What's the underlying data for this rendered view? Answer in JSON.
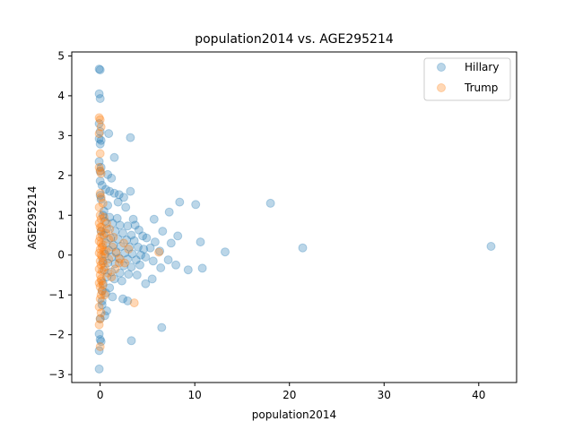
{
  "chart_data": {
    "type": "scatter",
    "title": "population2014 vs. AGE295214",
    "xlabel": "population2014",
    "ylabel": "AGE295214",
    "xlim": [
      -3.0,
      44.0
    ],
    "ylim": [
      -3.2,
      5.1
    ],
    "xticks": [
      0,
      10,
      20,
      30,
      40
    ],
    "yticks": [
      -3,
      -2,
      -1,
      0,
      1,
      2,
      3,
      4,
      5
    ],
    "grid": false,
    "legend_position": "top-right",
    "series": [
      {
        "name": "Hillary",
        "color": "#1f77b4",
        "alpha": 0.3,
        "points": [
          [
            -0.1,
            4.67
          ],
          [
            0.0,
            4.65
          ],
          [
            -0.1,
            4.05
          ],
          [
            0.0,
            3.93
          ],
          [
            -0.1,
            3.3
          ],
          [
            0.0,
            3.1
          ],
          [
            -0.1,
            2.92
          ],
          [
            0.1,
            2.88
          ],
          [
            0.0,
            2.79
          ],
          [
            0.9,
            3.05
          ],
          [
            3.2,
            2.95
          ],
          [
            -0.1,
            2.35
          ],
          [
            0.1,
            2.2
          ],
          [
            0.0,
            2.1
          ],
          [
            1.5,
            2.45
          ],
          [
            0.8,
            2.02
          ],
          [
            1.2,
            1.93
          ],
          [
            0.0,
            1.86
          ],
          [
            0.2,
            1.75
          ],
          [
            0.6,
            1.65
          ],
          [
            1.0,
            1.6
          ],
          [
            1.5,
            1.55
          ],
          [
            2.0,
            1.52
          ],
          [
            2.5,
            1.45
          ],
          [
            3.2,
            1.6
          ],
          [
            0.1,
            1.4
          ],
          [
            1.9,
            1.33
          ],
          [
            0.8,
            1.25
          ],
          [
            2.7,
            1.2
          ],
          [
            8.4,
            1.33
          ],
          [
            10.1,
            1.27
          ],
          [
            18.0,
            1.3
          ],
          [
            7.3,
            1.08
          ],
          [
            0.3,
            1.0
          ],
          [
            1.0,
            0.95
          ],
          [
            1.8,
            0.92
          ],
          [
            3.5,
            0.9
          ],
          [
            5.7,
            0.9
          ],
          [
            0.5,
            0.85
          ],
          [
            1.3,
            0.8
          ],
          [
            2.1,
            0.75
          ],
          [
            2.9,
            0.73
          ],
          [
            3.7,
            0.75
          ],
          [
            4.1,
            0.63
          ],
          [
            0.7,
            0.66
          ],
          [
            1.6,
            0.6
          ],
          [
            2.4,
            0.55
          ],
          [
            3.3,
            0.5
          ],
          [
            4.5,
            0.48
          ],
          [
            6.6,
            0.6
          ],
          [
            8.2,
            0.48
          ],
          [
            0.4,
            0.5
          ],
          [
            1.1,
            0.43
          ],
          [
            1.9,
            0.4
          ],
          [
            2.8,
            0.38
          ],
          [
            3.6,
            0.36
          ],
          [
            4.9,
            0.43
          ],
          [
            5.8,
            0.33
          ],
          [
            7.5,
            0.3
          ],
          [
            10.6,
            0.33
          ],
          [
            0.6,
            0.3
          ],
          [
            1.4,
            0.25
          ],
          [
            2.2,
            0.22
          ],
          [
            3.1,
            0.2
          ],
          [
            4.0,
            0.2
          ],
          [
            4.6,
            0.15
          ],
          [
            5.3,
            0.18
          ],
          [
            6.3,
            0.1
          ],
          [
            13.2,
            0.08
          ],
          [
            21.4,
            0.18
          ],
          [
            41.3,
            0.22
          ],
          [
            0.9,
            0.12
          ],
          [
            1.7,
            0.08
          ],
          [
            2.6,
            0.05
          ],
          [
            3.4,
            0.03
          ],
          [
            4.3,
            0.0
          ],
          [
            0.5,
            0.02
          ],
          [
            1.2,
            -0.05
          ],
          [
            2.0,
            -0.08
          ],
          [
            2.9,
            -0.1
          ],
          [
            3.8,
            -0.12
          ],
          [
            4.8,
            -0.05
          ],
          [
            5.6,
            -0.15
          ],
          [
            7.2,
            -0.12
          ],
          [
            8.0,
            -0.25
          ],
          [
            0.8,
            -0.2
          ],
          [
            1.6,
            -0.22
          ],
          [
            2.5,
            -0.27
          ],
          [
            3.3,
            -0.3
          ],
          [
            4.2,
            -0.25
          ],
          [
            6.4,
            -0.32
          ],
          [
            9.3,
            -0.37
          ],
          [
            10.8,
            -0.33
          ],
          [
            0.4,
            -0.38
          ],
          [
            1.2,
            -0.42
          ],
          [
            2.1,
            -0.45
          ],
          [
            3.0,
            -0.48
          ],
          [
            3.9,
            -0.5
          ],
          [
            5.5,
            -0.6
          ],
          [
            4.8,
            -0.72
          ],
          [
            0.7,
            -0.55
          ],
          [
            1.5,
            -0.6
          ],
          [
            2.3,
            -0.65
          ],
          [
            0.3,
            -0.7
          ],
          [
            1.0,
            -0.82
          ],
          [
            0.6,
            -0.95
          ],
          [
            1.3,
            -1.05
          ],
          [
            2.4,
            -1.1
          ],
          [
            2.9,
            -1.15
          ],
          [
            0.2,
            -1.25
          ],
          [
            0.7,
            -1.4
          ],
          [
            0.5,
            -1.52
          ],
          [
            0.0,
            -1.6
          ],
          [
            6.5,
            -1.82
          ],
          [
            -0.1,
            -1.98
          ],
          [
            0.0,
            -2.12
          ],
          [
            0.1,
            -2.17
          ],
          [
            3.3,
            -2.15
          ],
          [
            -0.1,
            -2.4
          ],
          [
            -0.1,
            -2.86
          ],
          [
            0.3,
            -0.15
          ],
          [
            0.1,
            0.6
          ],
          [
            0.2,
            -0.9
          ],
          [
            0.4,
            1.1
          ],
          [
            0.0,
            1.5
          ],
          [
            0.2,
            -1.15
          ]
        ]
      },
      {
        "name": "Trump",
        "color": "#ff7f0e",
        "alpha": 0.3,
        "points": [
          [
            -0.1,
            3.45
          ],
          [
            0.0,
            3.4
          ],
          [
            0.1,
            3.22
          ],
          [
            -0.1,
            3.05
          ],
          [
            0.0,
            2.55
          ],
          [
            -0.1,
            2.2
          ],
          [
            0.0,
            2.12
          ],
          [
            0.1,
            2.05
          ],
          [
            0.0,
            1.55
          ],
          [
            0.1,
            1.45
          ],
          [
            -0.1,
            1.2
          ],
          [
            0.0,
            1.0
          ],
          [
            0.1,
            0.9
          ],
          [
            -0.1,
            0.8
          ],
          [
            0.0,
            0.7
          ],
          [
            0.1,
            0.6
          ],
          [
            0.2,
            0.5
          ],
          [
            0.0,
            0.45
          ],
          [
            -0.1,
            0.35
          ],
          [
            0.1,
            0.3
          ],
          [
            0.2,
            0.2
          ],
          [
            0.3,
            0.25
          ],
          [
            0.0,
            0.15
          ],
          [
            -0.1,
            0.05
          ],
          [
            0.1,
            0.0
          ],
          [
            0.2,
            -0.05
          ],
          [
            0.4,
            0.1
          ],
          [
            0.0,
            -0.15
          ],
          [
            0.1,
            -0.25
          ],
          [
            -0.1,
            -0.35
          ],
          [
            0.2,
            -0.4
          ],
          [
            0.0,
            -0.5
          ],
          [
            0.1,
            -0.6
          ],
          [
            -0.1,
            -0.7
          ],
          [
            0.0,
            -0.8
          ],
          [
            0.2,
            -0.9
          ],
          [
            0.1,
            -1.0
          ],
          [
            0.0,
            -1.1
          ],
          [
            -0.1,
            -1.3
          ],
          [
            0.1,
            -1.45
          ],
          [
            0.0,
            -1.6
          ],
          [
            -0.1,
            -1.75
          ],
          [
            0.0,
            -2.3
          ],
          [
            0.6,
            0.55
          ],
          [
            0.9,
            0.4
          ],
          [
            1.3,
            0.2
          ],
          [
            1.7,
            0.05
          ],
          [
            2.1,
            -0.1
          ],
          [
            2.6,
            -0.2
          ],
          [
            0.5,
            -0.3
          ],
          [
            0.8,
            -0.45
          ],
          [
            1.2,
            -0.55
          ],
          [
            1.6,
            -0.35
          ],
          [
            2.0,
            -0.2
          ],
          [
            2.5,
            0.3
          ],
          [
            3.0,
            0.15
          ],
          [
            0.7,
            0.8
          ],
          [
            1.0,
            0.65
          ],
          [
            1.4,
            0.45
          ],
          [
            3.6,
            -1.2
          ],
          [
            6.2,
            0.07
          ],
          [
            0.3,
            -0.75
          ],
          [
            0.5,
            -1.0
          ],
          [
            0.3,
            1.3
          ],
          [
            0.4,
            0.95
          ],
          [
            0.3,
            -0.2
          ],
          [
            0.6,
            0.1
          ],
          [
            0.9,
            -0.1
          ],
          [
            0.15,
            0.7
          ],
          [
            0.15,
            -0.65
          ]
        ]
      }
    ]
  }
}
